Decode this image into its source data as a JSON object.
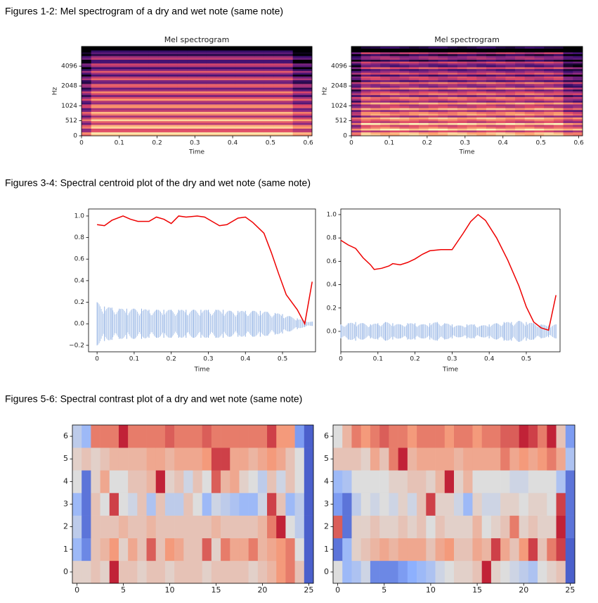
{
  "headings": [
    "Figures 1-2: Mel spectrogram of a dry and wet note (same note)",
    "Figures 3-4: Spectral centroid plot of the dry and wet note (same note)",
    "Figures 5-6: Spectral contrast plot of a dry and wet note (same note)"
  ],
  "spectrograms": [
    {
      "type": "spectrogram",
      "title": "Mel spectrogram",
      "xlabel": "Time",
      "ylabel": "Hz",
      "yscale": "mel",
      "xlim": [
        0,
        0.61
      ],
      "ylim": [
        0,
        8192
      ],
      "xticks": [
        0,
        0.1,
        0.2,
        0.3,
        0.4,
        0.5,
        0.6
      ],
      "yticks": [
        0,
        512,
        1024,
        2048,
        4096
      ]
    },
    {
      "type": "spectrogram",
      "title": "Mel spectrogram",
      "xlabel": "Time",
      "ylabel": "Hz",
      "yscale": "mel",
      "xlim": [
        0,
        0.61
      ],
      "ylim": [
        0,
        8192
      ],
      "xticks": [
        0,
        0.1,
        0.2,
        0.3,
        0.4,
        0.5,
        0.6
      ],
      "yticks": [
        0,
        512,
        1024,
        2048,
        4096
      ]
    }
  ],
  "centroids": [
    {
      "type": "line",
      "xlabel": "Time",
      "xlim": [
        -0.023,
        0.589
      ],
      "ylim": [
        -0.26,
        1.065
      ],
      "xticks": [
        0,
        0.1,
        0.2,
        0.3,
        0.4,
        0.5
      ],
      "yticks": [
        {
          "value": -0.2,
          "label": "−0.2"
        },
        {
          "value": 0,
          "label": "0.0"
        },
        0.2,
        0.4,
        0.6,
        0.8,
        {
          "value": 1,
          "label": "1.0"
        }
      ],
      "series": [
        {
          "color": "#ee0000",
          "x": [
            0,
            0.02,
            0.04,
            0.07,
            0.09,
            0.11,
            0.14,
            0.16,
            0.18,
            0.2,
            0.22,
            0.24,
            0.27,
            0.29,
            0.31,
            0.33,
            0.35,
            0.38,
            0.4,
            0.42,
            0.45,
            0.47,
            0.49,
            0.51,
            0.54,
            0.56,
            0.58
          ],
          "values": [
            0.92,
            0.91,
            0.96,
            1.0,
            0.97,
            0.95,
            0.95,
            0.99,
            0.97,
            0.93,
            1.0,
            0.99,
            1.0,
            0.99,
            0.95,
            0.91,
            0.92,
            0.98,
            0.99,
            0.94,
            0.84,
            0.66,
            0.46,
            0.27,
            0.13,
            0.0,
            0.39
          ]
        }
      ],
      "waveform": {
        "color": "#92b2e4",
        "x": [
          0,
          0.02,
          0.04,
          0.06,
          0.08,
          0.1,
          0.12,
          0.14,
          0.16,
          0.18,
          0.2,
          0.22,
          0.24,
          0.26,
          0.28,
          0.3,
          0.32,
          0.34,
          0.36,
          0.38,
          0.4,
          0.42,
          0.44,
          0.46,
          0.48,
          0.5,
          0.52,
          0.54,
          0.56,
          0.58
        ],
        "values": [
          0.2,
          0.16,
          0.15,
          0.14,
          0.14,
          0.14,
          0.14,
          0.13,
          0.13,
          0.13,
          0.13,
          0.13,
          0.13,
          0.13,
          0.13,
          0.13,
          0.13,
          0.13,
          0.12,
          0.12,
          0.12,
          0.12,
          0.12,
          0.11,
          0.1,
          0.09,
          0.07,
          0.05,
          0.03,
          0.02
        ]
      }
    },
    {
      "type": "line",
      "xlabel": "Time",
      "xlim": [
        0,
        0.591
      ],
      "ylim": [
        -0.175,
        1.048
      ],
      "xticks": [
        0,
        0.1,
        0.2,
        0.3,
        0.4,
        0.5
      ],
      "yticks": [
        {
          "value": 0,
          "label": "0.0"
        },
        0.2,
        0.4,
        0.6,
        0.8,
        {
          "value": 1,
          "label": "1.0"
        }
      ],
      "series": [
        {
          "color": "#ee0000",
          "x": [
            0,
            0.02,
            0.04,
            0.06,
            0.08,
            0.09,
            0.11,
            0.13,
            0.14,
            0.16,
            0.18,
            0.2,
            0.22,
            0.24,
            0.27,
            0.3,
            0.33,
            0.35,
            0.37,
            0.39,
            0.42,
            0.45,
            0.48,
            0.5,
            0.52,
            0.54,
            0.56,
            0.58
          ],
          "values": [
            0.78,
            0.74,
            0.71,
            0.63,
            0.57,
            0.53,
            0.54,
            0.56,
            0.58,
            0.57,
            0.59,
            0.62,
            0.66,
            0.69,
            0.7,
            0.7,
            0.84,
            0.94,
            1.0,
            0.95,
            0.8,
            0.61,
            0.39,
            0.21,
            0.08,
            0.03,
            0.01,
            0.31
          ]
        }
      ],
      "waveform": {
        "color": "#92b2e4",
        "x": [
          0,
          0.02,
          0.04,
          0.06,
          0.08,
          0.1,
          0.12,
          0.14,
          0.16,
          0.18,
          0.2,
          0.22,
          0.24,
          0.26,
          0.28,
          0.3,
          0.32,
          0.34,
          0.36,
          0.38,
          0.4,
          0.42,
          0.44,
          0.46,
          0.48,
          0.5,
          0.52,
          0.54,
          0.56,
          0.58
        ],
        "values": [
          0.06,
          0.07,
          0.08,
          0.07,
          0.06,
          0.07,
          0.08,
          0.07,
          0.06,
          0.07,
          0.07,
          0.06,
          0.07,
          0.08,
          0.07,
          0.06,
          0.05,
          0.06,
          0.06,
          0.05,
          0.06,
          0.07,
          0.08,
          0.08,
          0.09,
          0.08,
          0.07,
          0.06,
          0.05,
          0.06
        ]
      }
    }
  ],
  "contrasts": [
    {
      "type": "heatmap",
      "colormap": "coolwarm",
      "xlim": [
        -0.5,
        25.5
      ],
      "ylim": [
        -0.5,
        6.5
      ],
      "xticks": [
        0,
        5,
        10,
        15,
        20,
        25
      ],
      "yticks": [
        0,
        1,
        2,
        3,
        4,
        5,
        6
      ],
      "rows": [
        [
          0.55,
          0.55,
          0.6,
          0.55,
          0.95,
          0.6,
          0.6,
          0.55,
          0.6,
          0.6,
          0.55,
          0.6,
          0.6,
          0.6,
          0.55,
          0.6,
          0.6,
          0.6,
          0.6,
          0.55,
          0.6,
          0.65,
          0.75,
          0.8,
          0.6,
          0.05
        ],
        [
          0.3,
          0.15,
          0.6,
          0.65,
          0.75,
          0.55,
          0.7,
          0.6,
          0.85,
          0.6,
          0.75,
          0.7,
          0.6,
          0.6,
          0.85,
          0.55,
          0.8,
          0.7,
          0.7,
          0.8,
          0.65,
          0.7,
          0.75,
          0.8,
          0.5,
          0.05
        ],
        [
          0.4,
          0.1,
          0.6,
          0.6,
          0.6,
          0.65,
          0.6,
          0.6,
          0.65,
          0.6,
          0.6,
          0.6,
          0.6,
          0.6,
          0.6,
          0.65,
          0.6,
          0.6,
          0.6,
          0.6,
          0.65,
          0.8,
          0.95,
          0.5,
          0.4,
          0.05
        ],
        [
          0.3,
          0.1,
          0.6,
          0.5,
          0.9,
          0.5,
          0.45,
          0.6,
          0.35,
          0.6,
          0.4,
          0.4,
          0.6,
          0.5,
          0.3,
          0.45,
          0.4,
          0.35,
          0.3,
          0.3,
          0.45,
          0.9,
          0.6,
          0.3,
          0.4,
          0.05
        ],
        [
          0.5,
          0.1,
          0.55,
          0.7,
          0.5,
          0.5,
          0.6,
          0.6,
          0.65,
          0.95,
          0.55,
          0.6,
          0.45,
          0.6,
          0.5,
          0.85,
          0.65,
          0.7,
          0.55,
          0.5,
          0.4,
          0.6,
          0.45,
          0.6,
          0.5,
          0.05
        ],
        [
          0.55,
          0.6,
          0.55,
          0.6,
          0.65,
          0.65,
          0.65,
          0.65,
          0.7,
          0.7,
          0.65,
          0.7,
          0.7,
          0.7,
          0.75,
          0.9,
          0.9,
          0.7,
          0.7,
          0.65,
          0.7,
          0.75,
          0.7,
          0.6,
          0.5,
          0.05
        ],
        [
          0.4,
          0.3,
          0.8,
          0.8,
          0.8,
          0.95,
          0.8,
          0.8,
          0.8,
          0.8,
          0.85,
          0.8,
          0.8,
          0.8,
          0.85,
          0.8,
          0.8,
          0.8,
          0.8,
          0.8,
          0.8,
          0.9,
          0.75,
          0.75,
          0.2,
          0.05
        ]
      ]
    },
    {
      "type": "heatmap",
      "colormap": "coolwarm",
      "xlim": [
        -0.5,
        25.5
      ],
      "ylim": [
        -0.5,
        6.5
      ],
      "xticks": [
        0,
        5,
        10,
        15,
        20,
        25
      ],
      "yticks": [
        0,
        1,
        2,
        3,
        4,
        5,
        6
      ],
      "rows": [
        [
          0.5,
          0.3,
          0.35,
          0.45,
          0.15,
          0.15,
          0.15,
          0.2,
          0.25,
          0.3,
          0.35,
          0.45,
          0.5,
          0.55,
          0.55,
          0.6,
          0.95,
          0.55,
          0.5,
          0.45,
          0.4,
          0.35,
          0.5,
          0.55,
          0.6,
          0.05
        ],
        [
          0.1,
          0.3,
          0.55,
          0.6,
          0.65,
          0.7,
          0.65,
          0.7,
          0.7,
          0.7,
          0.6,
          0.7,
          0.75,
          0.6,
          0.6,
          0.7,
          0.65,
          0.9,
          0.7,
          0.6,
          0.75,
          0.9,
          0.6,
          0.8,
          0.9,
          0.05
        ],
        [
          0.85,
          0.1,
          0.55,
          0.55,
          0.6,
          0.55,
          0.55,
          0.6,
          0.55,
          0.6,
          0.5,
          0.6,
          0.55,
          0.55,
          0.55,
          0.65,
          0.5,
          0.55,
          0.6,
          0.8,
          0.55,
          0.6,
          0.55,
          0.55,
          0.95,
          0.1
        ],
        [
          0.2,
          0.1,
          0.4,
          0.5,
          0.45,
          0.5,
          0.45,
          0.55,
          0.45,
          0.6,
          0.9,
          0.55,
          0.55,
          0.45,
          0.3,
          0.55,
          0.45,
          0.45,
          0.55,
          0.55,
          0.5,
          0.55,
          0.55,
          0.5,
          0.9,
          0.1
        ],
        [
          0.3,
          0.35,
          0.5,
          0.5,
          0.5,
          0.5,
          0.55,
          0.55,
          0.6,
          0.6,
          0.55,
          0.65,
          0.95,
          0.55,
          0.65,
          0.5,
          0.5,
          0.5,
          0.5,
          0.45,
          0.45,
          0.5,
          0.5,
          0.5,
          0.35,
          0.1
        ],
        [
          0.6,
          0.6,
          0.6,
          0.55,
          0.7,
          0.6,
          0.8,
          0.95,
          0.65,
          0.7,
          0.7,
          0.7,
          0.7,
          0.65,
          0.7,
          0.7,
          0.7,
          0.7,
          0.8,
          0.7,
          0.75,
          0.7,
          0.75,
          0.8,
          0.7,
          0.35
        ],
        [
          0.5,
          0.65,
          0.8,
          0.75,
          0.8,
          0.85,
          0.8,
          0.8,
          0.75,
          0.8,
          0.8,
          0.8,
          0.75,
          0.8,
          0.8,
          0.75,
          0.8,
          0.8,
          0.85,
          0.85,
          0.95,
          0.9,
          0.8,
          0.95,
          0.6,
          0.2
        ]
      ]
    }
  ]
}
